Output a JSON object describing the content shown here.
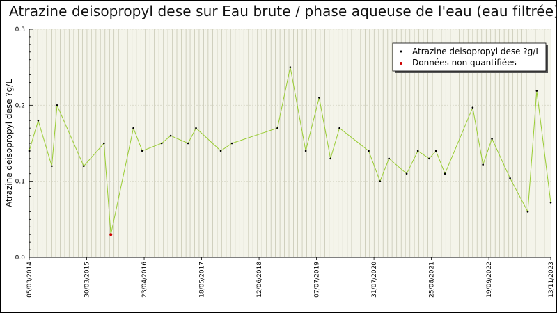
{
  "chart_data": {
    "type": "line",
    "title": "Atrazine deisopropyl dese sur Eau brute / phase aqueuse de l'eau (eau filtrée)",
    "ylabel": "Atrazine deisopropyl dese ?g/L",
    "xlabel": "",
    "ylim": [
      0,
      0.3
    ],
    "yticks": [
      "0.0",
      "0.1",
      "0.2",
      "0.3"
    ],
    "xticks": [
      "05/03/2014",
      "30/03/2015",
      "23/04/2016",
      "18/05/2017",
      "12/06/2018",
      "07/07/2019",
      "31/07/2020",
      "25/08/2021",
      "19/09/2022",
      "13/11/2023"
    ],
    "grid": true,
    "legend": "top-right",
    "colors": {
      "line": "#99cc33",
      "marker": "#000000",
      "nq_marker": "#cc0000",
      "plot_bg": "#f4f4ea",
      "grid": "#c8c8b4"
    },
    "series": [
      {
        "name": "Atrazine deisopropyl dese ?g/L",
        "points": [
          {
            "x": "2014-03-05",
            "y": 0.14
          },
          {
            "x": "2014-05-05",
            "y": 0.18
          },
          {
            "x": "2014-08-05",
            "y": 0.12
          },
          {
            "x": "2014-09-10",
            "y": 0.2
          },
          {
            "x": "2015-03-10",
            "y": 0.12
          },
          {
            "x": "2015-07-25",
            "y": 0.15
          },
          {
            "x": "2015-09-10",
            "y": 0.03
          },
          {
            "x": "2016-02-10",
            "y": 0.17
          },
          {
            "x": "2016-04-10",
            "y": 0.14
          },
          {
            "x": "2016-08-20",
            "y": 0.15
          },
          {
            "x": "2016-10-20",
            "y": 0.16
          },
          {
            "x": "2017-02-15",
            "y": 0.15
          },
          {
            "x": "2017-04-10",
            "y": 0.17
          },
          {
            "x": "2017-09-25",
            "y": 0.14
          },
          {
            "x": "2017-12-10",
            "y": 0.15
          },
          {
            "x": "2018-10-15",
            "y": 0.17
          },
          {
            "x": "2019-01-10",
            "y": 0.25
          },
          {
            "x": "2019-04-25",
            "y": 0.14
          },
          {
            "x": "2019-07-25",
            "y": 0.21
          },
          {
            "x": "2019-10-10",
            "y": 0.13
          },
          {
            "x": "2019-12-10",
            "y": 0.17
          },
          {
            "x": "2020-06-25",
            "y": 0.14
          },
          {
            "x": "2020-09-10",
            "y": 0.1
          },
          {
            "x": "2020-11-10",
            "y": 0.13
          },
          {
            "x": "2021-03-10",
            "y": 0.11
          },
          {
            "x": "2021-05-25",
            "y": 0.14
          },
          {
            "x": "2021-08-10",
            "y": 0.13
          },
          {
            "x": "2021-09-25",
            "y": 0.14
          },
          {
            "x": "2021-11-25",
            "y": 0.11
          },
          {
            "x": "2022-06-01",
            "y": 0.197
          },
          {
            "x": "2022-08-10",
            "y": 0.122
          },
          {
            "x": "2022-10-10",
            "y": 0.156
          },
          {
            "x": "2023-02-10",
            "y": 0.104
          },
          {
            "x": "2023-06-10",
            "y": 0.06
          },
          {
            "x": "2023-08-10",
            "y": 0.219
          },
          {
            "x": "2023-11-13",
            "y": 0.072
          }
        ]
      }
    ],
    "non_quantified": {
      "name": "Données non quantifiées",
      "points": [
        {
          "x": "2015-09-10",
          "y": 0.03
        }
      ]
    }
  }
}
